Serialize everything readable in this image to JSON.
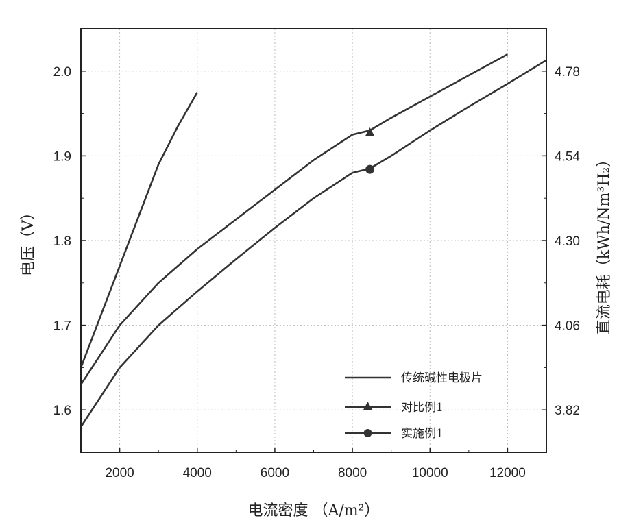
{
  "chart_data": {
    "type": "line",
    "xlabel": "电流密度 （A/m²）",
    "ylabel": "电压（V）",
    "y2label": "直流电耗（kWh/Nm³H₂）",
    "xlim": [
      1000,
      13000
    ],
    "ylim": [
      1.55,
      2.05
    ],
    "x_ticks": [
      2000,
      4000,
      6000,
      8000,
      10000,
      12000
    ],
    "y_ticks": [
      1.6,
      1.7,
      1.8,
      1.9,
      2.0
    ],
    "y_tick_labels": [
      "1.6",
      "1.7",
      "1.8",
      "1.9",
      "2.0"
    ],
    "y2_ticks": [
      1.6,
      1.7,
      1.8,
      1.9,
      2.0
    ],
    "y2_tick_labels": [
      "3.82",
      "4.06",
      "4.30",
      "4.54",
      "4.78"
    ],
    "grid": true,
    "legend_position": "bottom-right",
    "series": [
      {
        "name": "传统碱性电极片",
        "marker": "none",
        "color": "#333333",
        "x": [
          1000,
          1500,
          2000,
          2500,
          3000,
          3500,
          4000
        ],
        "y": [
          1.65,
          1.71,
          1.77,
          1.83,
          1.89,
          1.935,
          1.975
        ]
      },
      {
        "name": "对比例1",
        "marker": "triangle",
        "color": "#333333",
        "x": [
          1000,
          2000,
          3000,
          4000,
          5000,
          6000,
          7000,
          8000,
          8450,
          9000,
          10000,
          11000,
          12000
        ],
        "y": [
          1.63,
          1.7,
          1.75,
          1.79,
          1.825,
          1.86,
          1.895,
          1.925,
          1.93,
          1.945,
          1.97,
          1.995,
          2.02
        ],
        "marker_points": [
          {
            "x": 8450,
            "y": 1.927
          }
        ]
      },
      {
        "name": "实施例1",
        "marker": "circle",
        "color": "#333333",
        "x": [
          1000,
          2000,
          3000,
          4000,
          5000,
          6000,
          7000,
          8000,
          8450,
          9000,
          10000,
          11000,
          12000,
          13000
        ],
        "y": [
          1.58,
          1.65,
          1.7,
          1.74,
          1.778,
          1.815,
          1.85,
          1.88,
          1.885,
          1.9,
          1.93,
          1.958,
          1.985,
          2.013
        ],
        "marker_points": [
          {
            "x": 8450,
            "y": 1.884
          }
        ]
      }
    ]
  }
}
